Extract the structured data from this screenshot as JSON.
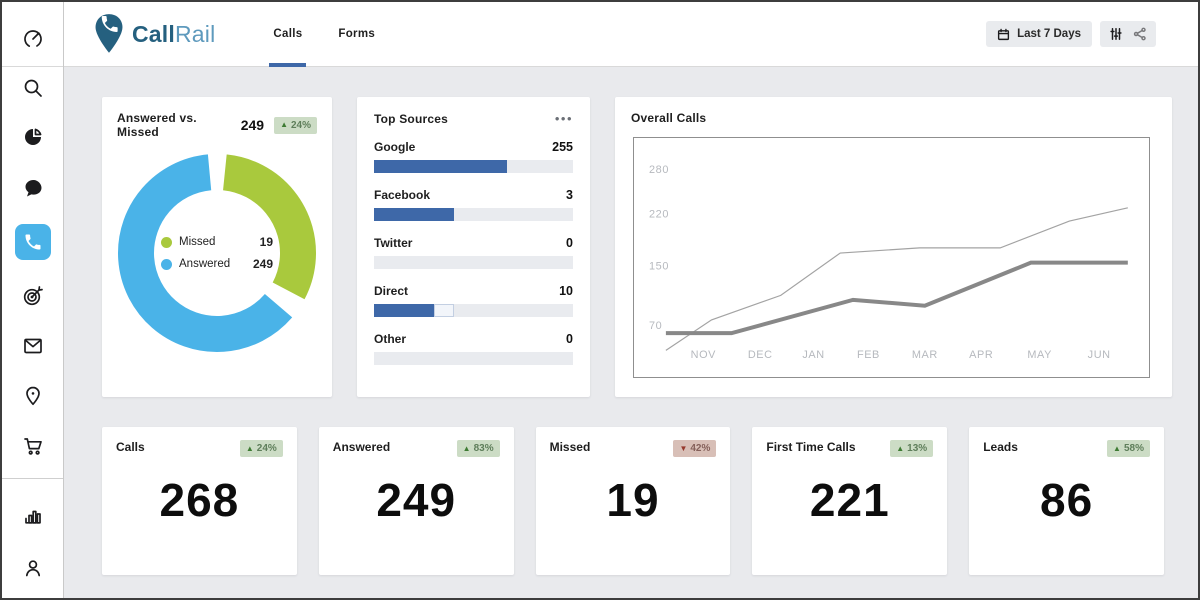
{
  "header": {
    "logo_call": "Call",
    "logo_rail": "Rail",
    "tabs": [
      {
        "label": "Calls"
      },
      {
        "label": "Forms"
      }
    ],
    "date_range_label": "Last 7 Days"
  },
  "sidebar": {
    "items": [
      {
        "icon": "gauge-icon"
      },
      {
        "icon": "search-icon"
      },
      {
        "icon": "pie-chart-icon"
      },
      {
        "icon": "chat-icon"
      },
      {
        "icon": "phone-icon",
        "active": true
      },
      {
        "icon": "target-icon"
      },
      {
        "icon": "mail-icon"
      },
      {
        "icon": "location-icon"
      },
      {
        "icon": "cart-icon"
      },
      {
        "icon": "bar-chart-icon"
      },
      {
        "icon": "user-icon"
      }
    ]
  },
  "colors": {
    "accent_blue": "#3e68a8",
    "donut_green": "#a9c93d",
    "donut_blue": "#4ab3e8",
    "badge_green_bg": "#ccdcc5",
    "badge_red_bg": "#d8bfb7",
    "line_thin": "#a3a3a3",
    "line_thick": "#888888"
  },
  "donut_card": {
    "title": "Answered vs. Missed",
    "total": "249",
    "badge": "24%",
    "arrow": "▲",
    "trend": "up",
    "legend": [
      {
        "label": "Missed",
        "value": "19",
        "color": "#a9c93d"
      },
      {
        "label": "Answered",
        "value": "249",
        "color": "#4ab3e8"
      }
    ]
  },
  "sources_card": {
    "title": "Top Sources",
    "menu": "•••",
    "rows": [
      {
        "label": "Google",
        "value": "255"
      },
      {
        "label": "Facebook",
        "value": "3"
      },
      {
        "label": "Twitter",
        "value": "0"
      },
      {
        "label": "Direct",
        "value": "10"
      },
      {
        "label": "Other",
        "value": "0"
      }
    ]
  },
  "line_card": {
    "title": "Overall Calls"
  },
  "stats": [
    {
      "label": "Calls",
      "value": "268",
      "badge": "24%",
      "arrow": "▲",
      "trend": "up"
    },
    {
      "label": "Answered",
      "value": "249",
      "badge": "83%",
      "arrow": "▲",
      "trend": "up"
    },
    {
      "label": "Missed",
      "value": "19",
      "badge": "42%",
      "arrow": "▼",
      "trend": "down"
    },
    {
      "label": "First Time Calls",
      "value": "221",
      "badge": "13%",
      "arrow": "▲",
      "trend": "up"
    },
    {
      "label": "Leads",
      "value": "86",
      "badge": "58%",
      "arrow": "▲",
      "trend": "up"
    }
  ],
  "chart_data": [
    {
      "id": "answered_vs_missed",
      "type": "pie",
      "title": "Answered vs. Missed",
      "total": 249,
      "slices": [
        {
          "label": "Missed",
          "value": 19,
          "color": "#a9c93d",
          "arc_deg": [
            6,
            118
          ]
        },
        {
          "label": "Answered",
          "value": 249,
          "color": "#4ab3e8",
          "arc_deg": [
            131,
            355
          ]
        }
      ],
      "legend_position": "center"
    },
    {
      "id": "top_sources",
      "type": "bar",
      "title": "Top Sources",
      "categories": [
        "Google",
        "Facebook",
        "Twitter",
        "Direct",
        "Other"
      ],
      "values": [
        255,
        3,
        0,
        10,
        0
      ],
      "bar_fill_pct": [
        67,
        40,
        0,
        30,
        0
      ],
      "bar_extra_pct": [
        0,
        0,
        0,
        10,
        0
      ],
      "bar_color": "#3e68a8"
    },
    {
      "id": "overall_calls",
      "type": "line",
      "title": "Overall Calls",
      "x_ticks": [
        "NOV",
        "DEC",
        "JAN",
        "FEB",
        "MAR",
        "APR",
        "MAY",
        "JUN"
      ],
      "x_tick_pos": [
        0.133,
        0.244,
        0.348,
        0.455,
        0.565,
        0.675,
        0.789,
        0.905
      ],
      "y_ticks": [
        280,
        220,
        150,
        70
      ],
      "ylim": [
        0,
        322
      ],
      "grid": false,
      "series": [
        {
          "name": "series1",
          "color": "#a3a3a3",
          "width": 1.2,
          "points": [
            [
              0.06,
              36
            ],
            [
              0.149,
              77
            ],
            [
              0.284,
              110
            ],
            [
              0.4,
              167
            ],
            [
              0.555,
              174
            ],
            [
              0.712,
              174
            ],
            [
              0.847,
              210
            ],
            [
              0.961,
              228
            ]
          ]
        },
        {
          "name": "series2",
          "color": "#888888",
          "width": 4,
          "points": [
            [
              0.06,
              59
            ],
            [
              0.188,
              59
            ],
            [
              0.425,
              104
            ],
            [
              0.565,
              96
            ],
            [
              0.772,
              154
            ],
            [
              0.961,
              154
            ]
          ]
        }
      ]
    }
  ]
}
